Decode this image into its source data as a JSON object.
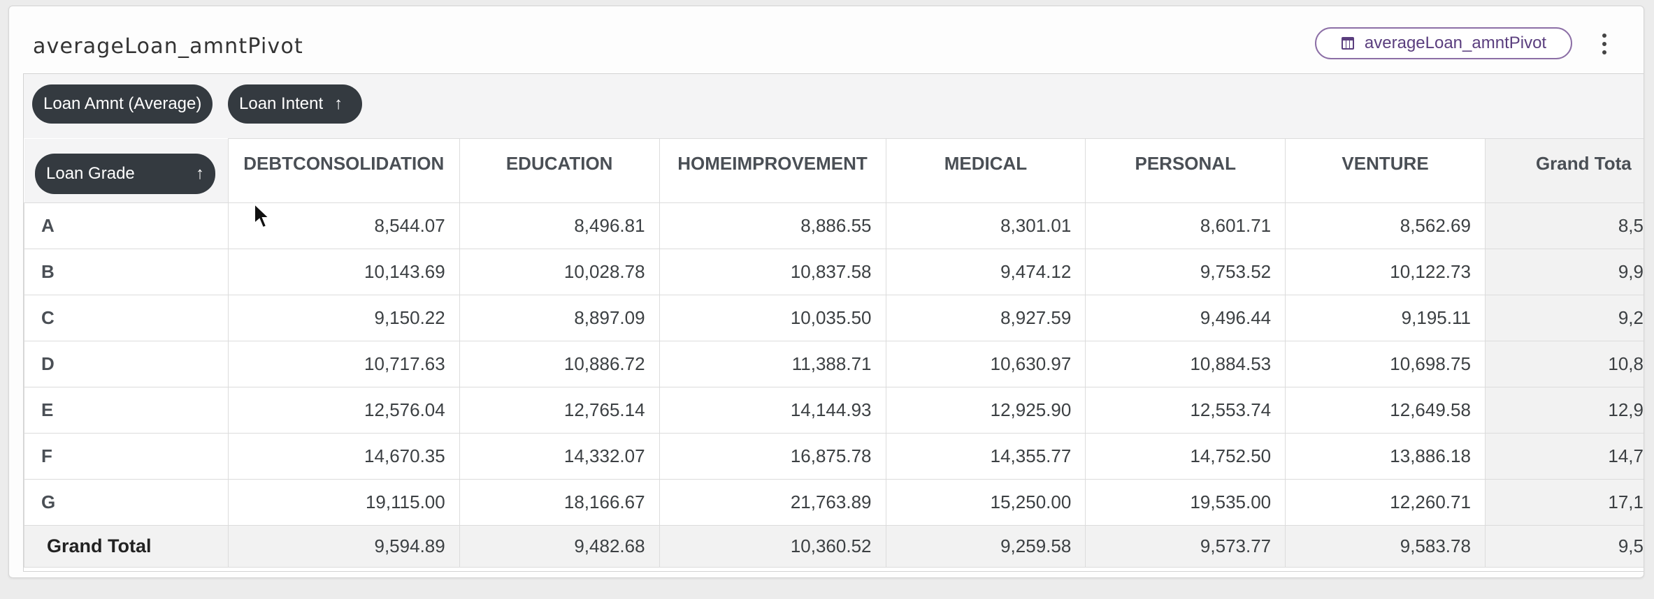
{
  "title": "averageLoan_amntPivot",
  "source_chip": {
    "label": "averageLoan_amntPivot",
    "icon": "table-icon"
  },
  "menu_icon": "more-vertical-icon",
  "pivot": {
    "measure_pill": "Loan Amnt (Average)",
    "column_pill": "Loan Intent",
    "row_pill": "Loan Grade",
    "sort_icon": "↑",
    "columns": [
      "DEBTCONSOLIDATION",
      "EDUCATION",
      "HOMEIMPROVEMENT",
      "MEDICAL",
      "PERSONAL",
      "VENTURE",
      "Grand Tota"
    ],
    "rows": [
      {
        "label": "A",
        "values": [
          "8,544.07",
          "8,496.81",
          "8,886.55",
          "8,301.01",
          "8,601.71",
          "8,562.69",
          "8,5"
        ]
      },
      {
        "label": "B",
        "values": [
          "10,143.69",
          "10,028.78",
          "10,837.58",
          "9,474.12",
          "9,753.52",
          "10,122.73",
          "9,9"
        ]
      },
      {
        "label": "C",
        "values": [
          "9,150.22",
          "8,897.09",
          "10,035.50",
          "8,927.59",
          "9,496.44",
          "9,195.11",
          "9,2"
        ]
      },
      {
        "label": "D",
        "values": [
          "10,717.63",
          "10,886.72",
          "11,388.71",
          "10,630.97",
          "10,884.53",
          "10,698.75",
          "10,8"
        ]
      },
      {
        "label": "E",
        "values": [
          "12,576.04",
          "12,765.14",
          "14,144.93",
          "12,925.90",
          "12,553.74",
          "12,649.58",
          "12,9"
        ]
      },
      {
        "label": "F",
        "values": [
          "14,670.35",
          "14,332.07",
          "16,875.78",
          "14,355.77",
          "14,752.50",
          "13,886.18",
          "14,7"
        ]
      },
      {
        "label": "G",
        "values": [
          "19,115.00",
          "18,166.67",
          "21,763.89",
          "15,250.00",
          "19,535.00",
          "12,260.71",
          "17,1"
        ]
      }
    ],
    "grand_total": {
      "label": "Grand Total",
      "values": [
        "9,594.89",
        "9,482.68",
        "10,360.52",
        "9,259.58",
        "9,573.77",
        "9,583.78",
        "9,5"
      ]
    }
  }
}
